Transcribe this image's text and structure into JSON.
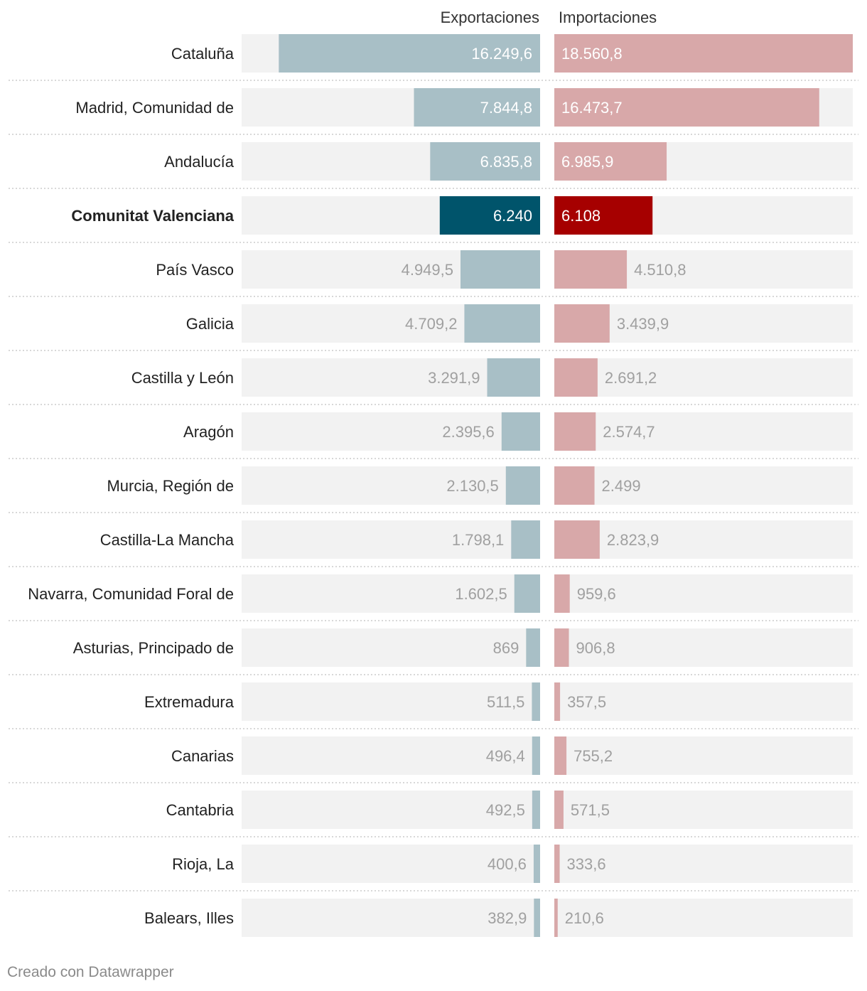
{
  "chart_data": {
    "type": "bar",
    "layout": "split-bars",
    "series": [
      {
        "name": "Exportaciones",
        "color": "#a8bfc6",
        "highlight_color": "#00546b"
      },
      {
        "name": "Importaciones",
        "color": "#d8a8a9",
        "highlight_color": "#a60000"
      }
    ],
    "max_value": 18560.8,
    "highlight": "Comunitat Valenciana",
    "rows": [
      {
        "region": "Cataluña",
        "exportaciones": 16249.6,
        "importaciones": 18560.8,
        "exp_label": "16.249,6",
        "imp_label": "18.560,8"
      },
      {
        "region": "Madrid, Comunidad de",
        "exportaciones": 7844.8,
        "importaciones": 16473.7,
        "exp_label": "7.844,8",
        "imp_label": "16.473,7"
      },
      {
        "region": "Andalucía",
        "exportaciones": 6835.8,
        "importaciones": 6985.9,
        "exp_label": "6.835,8",
        "imp_label": "6.985,9"
      },
      {
        "region": "Comunitat Valenciana",
        "exportaciones": 6240,
        "importaciones": 6108,
        "exp_label": "6.240",
        "imp_label": "6.108"
      },
      {
        "region": "País Vasco",
        "exportaciones": 4949.5,
        "importaciones": 4510.8,
        "exp_label": "4.949,5",
        "imp_label": "4.510,8"
      },
      {
        "region": "Galicia",
        "exportaciones": 4709.2,
        "importaciones": 3439.9,
        "exp_label": "4.709,2",
        "imp_label": "3.439,9"
      },
      {
        "region": "Castilla y León",
        "exportaciones": 3291.9,
        "importaciones": 2691.2,
        "exp_label": "3.291,9",
        "imp_label": "2.691,2"
      },
      {
        "region": "Aragón",
        "exportaciones": 2395.6,
        "importaciones": 2574.7,
        "exp_label": "2.395,6",
        "imp_label": "2.574,7"
      },
      {
        "region": "Murcia, Región de",
        "exportaciones": 2130.5,
        "importaciones": 2499,
        "exp_label": "2.130,5",
        "imp_label": "2.499"
      },
      {
        "region": "Castilla-La Mancha",
        "exportaciones": 1798.1,
        "importaciones": 2823.9,
        "exp_label": "1.798,1",
        "imp_label": "2.823,9"
      },
      {
        "region": "Navarra, Comunidad Foral de",
        "exportaciones": 1602.5,
        "importaciones": 959.6,
        "exp_label": "1.602,5",
        "imp_label": "959,6"
      },
      {
        "region": "Asturias, Principado de",
        "exportaciones": 869,
        "importaciones": 906.8,
        "exp_label": "869",
        "imp_label": "906,8"
      },
      {
        "region": "Extremadura",
        "exportaciones": 511.5,
        "importaciones": 357.5,
        "exp_label": "511,5",
        "imp_label": "357,5"
      },
      {
        "region": "Canarias",
        "exportaciones": 496.4,
        "importaciones": 755.2,
        "exp_label": "496,4",
        "imp_label": "755,2"
      },
      {
        "region": "Cantabria",
        "exportaciones": 492.5,
        "importaciones": 571.5,
        "exp_label": "492,5",
        "imp_label": "571,5"
      },
      {
        "region": "Rioja, La",
        "exportaciones": 400.6,
        "importaciones": 333.6,
        "exp_label": "400,6",
        "imp_label": "333,6"
      },
      {
        "region": "Balears, Illes",
        "exportaciones": 382.9,
        "importaciones": 210.6,
        "exp_label": "382,9",
        "imp_label": "210,6"
      }
    ]
  },
  "colors": {
    "track": "#f2f2f2",
    "label_inside": "#ffffff",
    "label_outside": "#a0a0a0",
    "region_text": "#222222",
    "separator": "#cccccc"
  },
  "footer": {
    "credit": "Creado con Datawrapper"
  }
}
